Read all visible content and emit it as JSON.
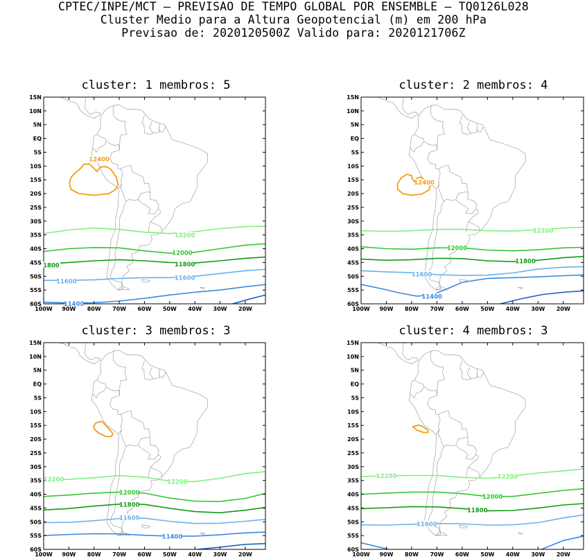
{
  "header": {
    "line1": "CPTEC/INPE/MCT – PREVISAO DE TEMPO GLOBAL POR ENSEMBLE – TQ0126L028",
    "line2": "Cluster Medio para a Altura Geopotencial (m) em 200 hPa",
    "line3": "Previsao de: 2020120500Z   Valido para: 2020121706Z"
  },
  "axes": {
    "lat_labels": [
      "15N",
      "10N",
      "5N",
      "EQ",
      "5S",
      "10S",
      "15S",
      "20S",
      "25S",
      "30S",
      "35S",
      "40S",
      "45S",
      "50S",
      "55S",
      "60S"
    ],
    "lon_labels": [
      "100W",
      "90W",
      "80W",
      "70W",
      "60W",
      "50W",
      "40W",
      "30W",
      "20W"
    ]
  },
  "colors": {
    "c12400": "#f39c12",
    "c12200": "#7ef07e",
    "c12000": "#33c433",
    "c11800": "#129912",
    "c11600": "#6ab0f0",
    "c11400": "#3a8ae0",
    "c11200": "#1f5fbf",
    "land": "#a0a0a0"
  },
  "panels": [
    {
      "title": "cluster: 1   membros: 5",
      "labels": {
        "a": "12400",
        "b": "12200",
        "c": "12000",
        "d": "11800",
        "d2": "1800",
        "e": "11600",
        "e2": "11600",
        "f": "11400"
      }
    },
    {
      "title": "cluster: 2   membros: 4",
      "labels": {
        "a": "12400",
        "b": "12200",
        "c": "12000",
        "d": "11800",
        "e": "11600",
        "f": "11400"
      }
    },
    {
      "title": "cluster: 3   membros: 3",
      "labels": {
        "b": "12200",
        "b2": "12200",
        "c": "12000",
        "d": "11800",
        "e": "11600",
        "f": "11400"
      }
    },
    {
      "title": "cluster: 4   membros: 3",
      "labels": {
        "b": "12200",
        "b2": "12200",
        "c": "12000",
        "d": "11800",
        "e": "11600"
      }
    }
  ]
}
